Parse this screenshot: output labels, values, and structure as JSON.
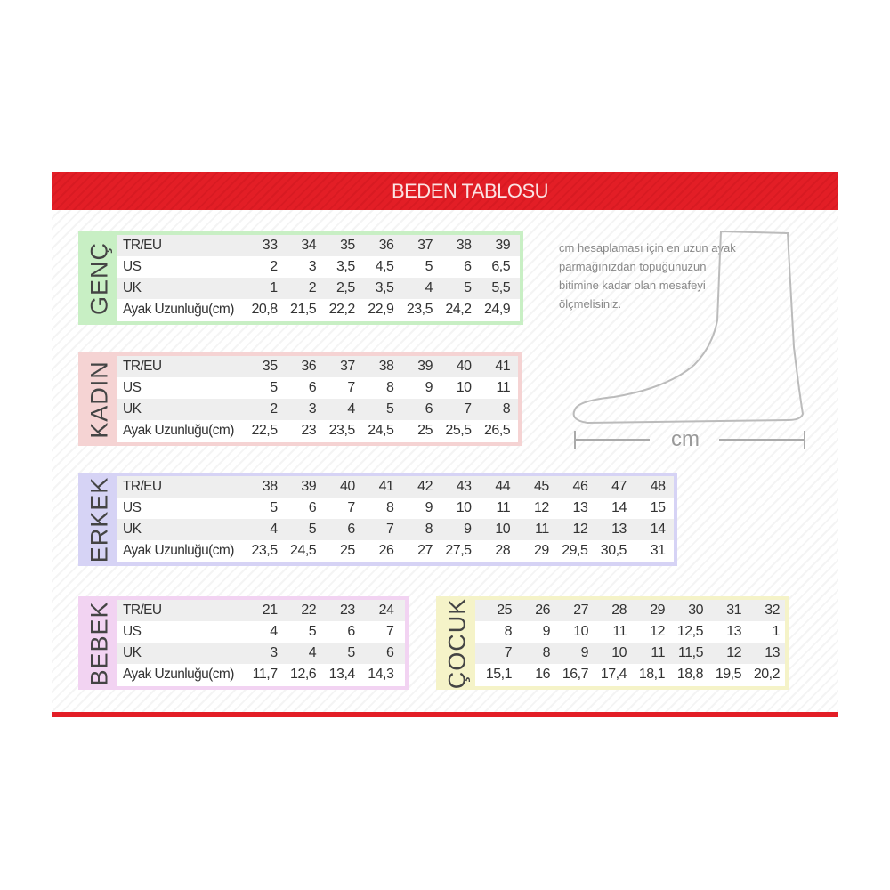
{
  "title": "BEDEN TABLOSU",
  "note": "cm hesaplaması için en uzun ayak parmağınızdan topuğunuzun bitimine kadar olan mesafeyi ölçmelisiniz.",
  "measure_label": "cm",
  "row_labels": [
    "TR/EU",
    "US",
    "UK",
    "Ayak Uzunluğu(cm)"
  ],
  "tables": [
    {
      "name": "GENÇ",
      "color": "#c8efc4",
      "rows": [
        [
          "33",
          "34",
          "35",
          "36",
          "37",
          "38",
          "39"
        ],
        [
          "2",
          "3",
          "3,5",
          "4,5",
          "5",
          "6",
          "6,5"
        ],
        [
          "1",
          "2",
          "2,5",
          "3,5",
          "4",
          "5",
          "5,5"
        ],
        [
          "20,8",
          "21,5",
          "22,2",
          "22,9",
          "23,5",
          "24,2",
          "24,9"
        ]
      ]
    },
    {
      "name": "KADIN",
      "color": "#f5d3d3",
      "rows": [
        [
          "35",
          "36",
          "37",
          "38",
          "39",
          "40",
          "41"
        ],
        [
          "5",
          "6",
          "7",
          "8",
          "9",
          "10",
          "11"
        ],
        [
          "2",
          "3",
          "4",
          "5",
          "6",
          "7",
          "8"
        ],
        [
          "22,5",
          "23",
          "23,5",
          "24,5",
          "25",
          "25,5",
          "26,5"
        ]
      ]
    },
    {
      "name": "ERKEK",
      "color": "#d6d3f5",
      "rows": [
        [
          "38",
          "39",
          "40",
          "41",
          "42",
          "43",
          "44",
          "45",
          "46",
          "47",
          "48"
        ],
        [
          "5",
          "6",
          "7",
          "8",
          "9",
          "10",
          "11",
          "12",
          "13",
          "14",
          "15"
        ],
        [
          "4",
          "5",
          "6",
          "7",
          "8",
          "9",
          "10",
          "11",
          "12",
          "13",
          "14"
        ],
        [
          "23,5",
          "24,5",
          "25",
          "26",
          "27",
          "27,5",
          "28",
          "29",
          "29,5",
          "30,5",
          "31"
        ]
      ]
    },
    {
      "name": "BEBEK",
      "color": "#f2d3f2",
      "rows": [
        [
          "21",
          "22",
          "23",
          "24"
        ],
        [
          "4",
          "5",
          "6",
          "7"
        ],
        [
          "3",
          "4",
          "5",
          "6"
        ],
        [
          "11,7",
          "12,6",
          "13,4",
          "14,3"
        ]
      ]
    },
    {
      "name": "ÇOCUK",
      "color": "#f5f3c8",
      "rows": [
        [
          "25",
          "26",
          "27",
          "28",
          "29",
          "30",
          "31",
          "32"
        ],
        [
          "8",
          "9",
          "10",
          "11",
          "12",
          "12,5",
          "13",
          "1"
        ],
        [
          "7",
          "8",
          "9",
          "10",
          "11",
          "11,5",
          "12",
          "13"
        ],
        [
          "15,1",
          "16",
          "16,7",
          "17,4",
          "18,1",
          "18,8",
          "19,5",
          "20,2"
        ]
      ]
    }
  ]
}
